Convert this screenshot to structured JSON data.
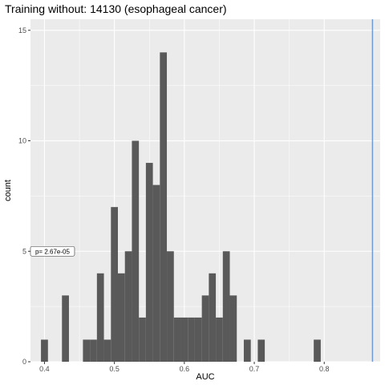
{
  "chart_data": {
    "type": "bar",
    "title": "Training without: 14130 (esophageal cancer)",
    "xlabel": "AUC",
    "ylabel": "count",
    "xlim": [
      0.38,
      0.88
    ],
    "ylim": [
      0,
      15.5
    ],
    "x_ticks": [
      0.4,
      0.5,
      0.6,
      0.7,
      0.8
    ],
    "x_tick_labels": [
      "0.4",
      "0.5",
      "0.6",
      "0.7",
      "0.8"
    ],
    "y_ticks": [
      0,
      5,
      10,
      15
    ],
    "y_tick_labels": [
      "0",
      "5",
      "10",
      "15"
    ],
    "bin_width": 0.01,
    "bin_centers": [
      0.4,
      0.41,
      0.42,
      0.43,
      0.44,
      0.45,
      0.46,
      0.47,
      0.48,
      0.49,
      0.5,
      0.51,
      0.52,
      0.53,
      0.54,
      0.55,
      0.56,
      0.57,
      0.58,
      0.59,
      0.6,
      0.61,
      0.62,
      0.63,
      0.64,
      0.65,
      0.66,
      0.67,
      0.68,
      0.69,
      0.7,
      0.71,
      0.72,
      0.73,
      0.74,
      0.75,
      0.76,
      0.77,
      0.78,
      0.79,
      0.8,
      0.81
    ],
    "counts": [
      1,
      0,
      0,
      3,
      0,
      0,
      1,
      1,
      4,
      1,
      7,
      4,
      5,
      10,
      2,
      9,
      8,
      14,
      5,
      2,
      2,
      2,
      2,
      3,
      4,
      2,
      5,
      3,
      0,
      1,
      0,
      1,
      0,
      0,
      0,
      0,
      0,
      0,
      0,
      1,
      0,
      0
    ],
    "reference_line_x": 0.869,
    "annotation": {
      "text": "p= 2.67e-05",
      "x": 0.4115,
      "y": 5
    },
    "grid": true,
    "colors": {
      "panel": "#ebebeb",
      "grid": "#ffffff",
      "bar": "#595959",
      "vline": "#6f9bd8"
    }
  }
}
